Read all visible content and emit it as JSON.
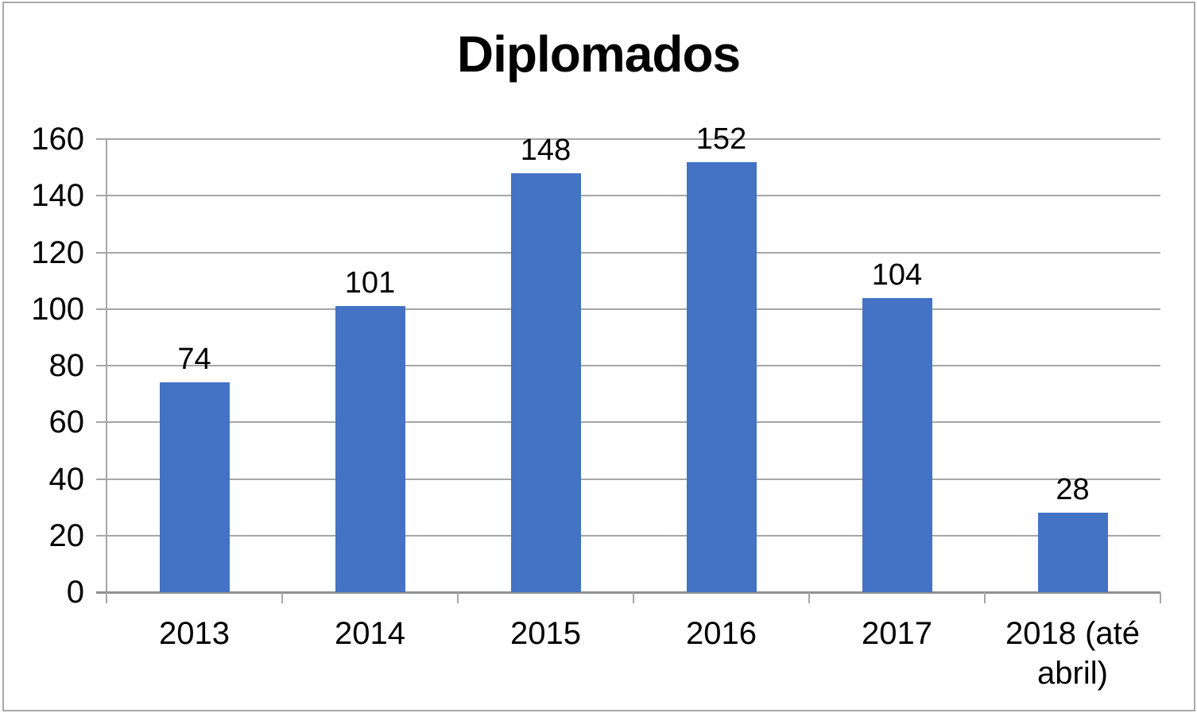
{
  "chart_data": {
    "type": "bar",
    "title": "Diplomados",
    "categories": [
      "2013",
      "2014",
      "2015",
      "2016",
      "2017",
      "2018 (até abril)"
    ],
    "values": [
      74,
      101,
      148,
      152,
      104,
      28
    ],
    "data_labels": [
      74,
      101,
      148,
      152,
      104,
      28
    ],
    "ylim": [
      0,
      160
    ],
    "ytick_step": 20,
    "ytick_labels": [
      "0",
      "20",
      "40",
      "60",
      "80",
      "100",
      "120",
      "140",
      "160"
    ],
    "grid": "horizontal",
    "legend": "none",
    "colors": {
      "bar": "#4472c4",
      "gridline": "#a6a6a6",
      "axis": "#909090",
      "text": "#000000",
      "frame_border": "#a9a9a9",
      "background": "#ffffff"
    }
  }
}
